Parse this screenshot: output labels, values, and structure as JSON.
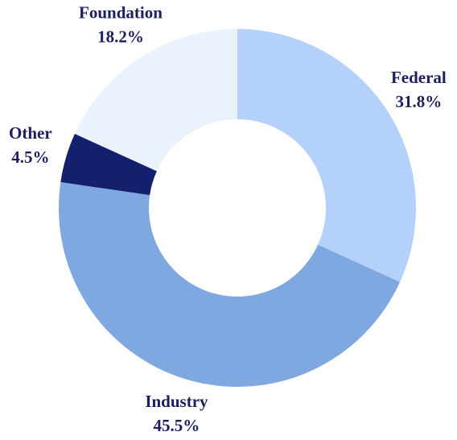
{
  "chart_data": {
    "type": "donut",
    "categories": [
      "Federal",
      "Industry",
      "Other",
      "Foundation"
    ],
    "values": [
      31.8,
      45.5,
      4.5,
      18.2
    ],
    "value_labels": [
      "31.8%",
      "45.5%",
      "4.5%",
      "18.2%"
    ],
    "colors": [
      "#b3d1fb",
      "#7fa8e0",
      "#14206e",
      "#eaf2fe"
    ]
  }
}
